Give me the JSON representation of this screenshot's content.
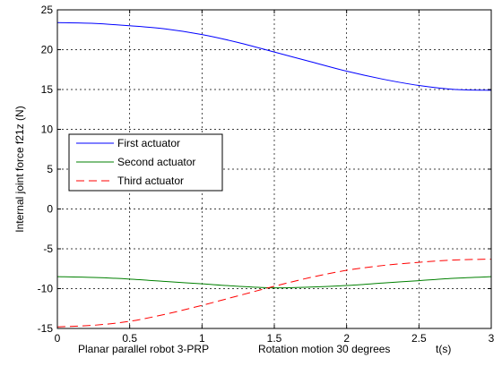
{
  "chart_data": {
    "type": "line",
    "xlabel_left": "Planar parallel robot 3-PRP",
    "xlabel_mid": "Rotation motion 30 degrees",
    "xlabel_right": "t(s)",
    "ylabel": "Internal joint force f21z (N)",
    "xlim": [
      0,
      3
    ],
    "ylim": [
      -15,
      25
    ],
    "xticks": [
      0,
      0.5,
      1,
      1.5,
      2,
      2.5,
      3
    ],
    "xtick_labels": [
      "0",
      "0.5",
      "1",
      "1.5",
      "2",
      "2.5",
      "3"
    ],
    "yticks": [
      -15,
      -10,
      -5,
      0,
      5,
      10,
      15,
      20,
      25
    ],
    "ytick_labels": [
      "-15",
      "-10",
      "-5",
      "0",
      "5",
      "10",
      "15",
      "20",
      "25"
    ],
    "grid": true,
    "legend_position": "center-left",
    "x": [
      0,
      0.25,
      0.5,
      0.75,
      1.0,
      1.25,
      1.5,
      1.75,
      2.0,
      2.25,
      2.5,
      2.75,
      3.0
    ],
    "series": [
      {
        "name": "First actuator",
        "color": "#0000ff",
        "dash": "solid",
        "values": [
          23.4,
          23.3,
          23.0,
          22.6,
          21.9,
          20.9,
          19.7,
          18.5,
          17.3,
          16.3,
          15.5,
          15.0,
          14.9
        ]
      },
      {
        "name": "Second actuator",
        "color": "#008000",
        "dash": "solid",
        "values": [
          -8.5,
          -8.6,
          -8.8,
          -9.1,
          -9.4,
          -9.7,
          -9.9,
          -9.8,
          -9.6,
          -9.3,
          -9.0,
          -8.7,
          -8.5
        ]
      },
      {
        "name": "Third actuator",
        "color": "#ff0000",
        "dash": "dashed",
        "values": [
          -14.8,
          -14.6,
          -14.1,
          -13.2,
          -12.1,
          -10.9,
          -9.7,
          -8.6,
          -7.7,
          -7.1,
          -6.7,
          -6.4,
          -6.3
        ]
      }
    ]
  }
}
